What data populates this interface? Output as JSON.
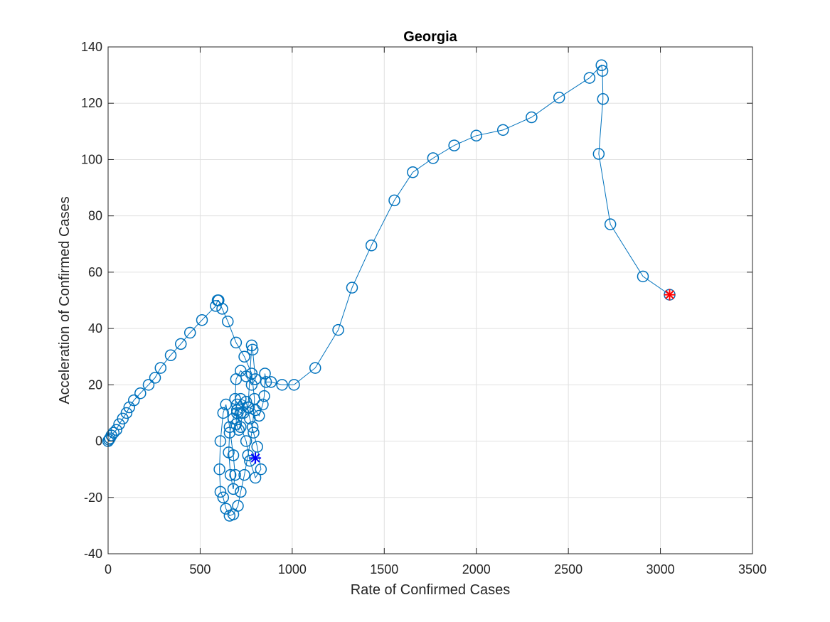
{
  "chart_data": {
    "type": "line",
    "title": "Georgia",
    "xlabel": "Rate of Confirmed Cases",
    "ylabel": "Acceleration of Confirmed Cases",
    "xlim": [
      0,
      3500
    ],
    "ylim": [
      -40,
      140
    ],
    "xticks": [
      0,
      500,
      1000,
      1500,
      2000,
      2500,
      3000,
      3500
    ],
    "yticks": [
      -40,
      -20,
      0,
      20,
      40,
      60,
      80,
      100,
      120,
      140
    ],
    "xtick_labels": [
      "0",
      "500",
      "1000",
      "1500",
      "2000",
      "2500",
      "3000",
      "3500"
    ],
    "ytick_labels": [
      "-40",
      "-20",
      "0",
      "20",
      "40",
      "60",
      "80",
      "100",
      "120",
      "140"
    ],
    "grid": true,
    "colors": {
      "series": "#0072BD",
      "start_marker": "#0000FF",
      "end_marker": "#FF0000",
      "grid": "#e0e0e0",
      "axis": "#262626"
    },
    "series": [
      {
        "marker": "circle",
        "points": [
          [
            0,
            0
          ],
          [
            5,
            0.5
          ],
          [
            10,
            1
          ],
          [
            18,
            2
          ],
          [
            30,
            3
          ],
          [
            45,
            4
          ],
          [
            60,
            6
          ],
          [
            80,
            8
          ],
          [
            100,
            10
          ],
          [
            115,
            12
          ],
          [
            140,
            14.5
          ],
          [
            175,
            17
          ],
          [
            220,
            20
          ],
          [
            255,
            22.5
          ],
          [
            285,
            26
          ],
          [
            340,
            30.5
          ],
          [
            395,
            34.5
          ],
          [
            445,
            38.5
          ],
          [
            510,
            43
          ],
          [
            585,
            48
          ],
          [
            595,
            50
          ],
          [
            600,
            50
          ],
          [
            620,
            47
          ],
          [
            650,
            42.5
          ],
          [
            695,
            35
          ],
          [
            740,
            30
          ],
          [
            780,
            24
          ],
          [
            795,
            15
          ],
          [
            785,
            5
          ],
          [
            760,
            -5
          ],
          [
            740,
            -12
          ],
          [
            720,
            -18
          ],
          [
            705,
            -23
          ],
          [
            680,
            -26
          ],
          [
            660,
            -26.5
          ],
          [
            640,
            -24
          ],
          [
            625,
            -20
          ],
          [
            610,
            -18
          ],
          [
            605,
            -10
          ],
          [
            610,
            0
          ],
          [
            625,
            10
          ],
          [
            640,
            13
          ],
          [
            660,
            5
          ],
          [
            680,
            -5
          ],
          [
            690,
            -12
          ],
          [
            680,
            -17
          ],
          [
            665,
            -12
          ],
          [
            655,
            -4
          ],
          [
            660,
            3
          ],
          [
            680,
            8
          ],
          [
            700,
            13
          ],
          [
            720,
            15
          ],
          [
            750,
            14
          ],
          [
            770,
            8
          ],
          [
            790,
            3
          ],
          [
            810,
            -2
          ],
          [
            830,
            -10
          ],
          [
            800,
            -13
          ],
          [
            770,
            -7
          ],
          [
            750,
            0
          ],
          [
            720,
            5
          ],
          [
            700,
            10
          ],
          [
            690,
            15
          ],
          [
            695,
            22
          ],
          [
            720,
            25
          ],
          [
            750,
            23
          ],
          [
            780,
            20
          ],
          [
            800,
            22
          ],
          [
            785,
            32.5
          ],
          [
            780,
            34
          ],
          [
            760,
            12
          ],
          [
            720,
            10
          ],
          [
            700,
            11
          ],
          [
            695,
            6
          ],
          [
            710,
            4
          ],
          [
            735,
            10
          ],
          [
            765,
            12
          ],
          [
            800,
            11
          ],
          [
            820,
            9
          ],
          [
            840,
            13
          ],
          [
            848,
            16
          ],
          [
            852,
            24
          ],
          [
            858,
            21
          ],
          [
            885,
            21
          ],
          [
            945,
            20
          ],
          [
            1010,
            20
          ],
          [
            1125,
            26
          ],
          [
            1250,
            39.5
          ],
          [
            1325,
            54.5
          ],
          [
            1430,
            69.5
          ],
          [
            1555,
            85.5
          ],
          [
            1655,
            95.5
          ],
          [
            1765,
            100.5
          ],
          [
            1880,
            105
          ],
          [
            2000,
            108.5
          ],
          [
            2145,
            110.5
          ],
          [
            2300,
            115
          ],
          [
            2450,
            122
          ],
          [
            2615,
            129
          ],
          [
            2680,
            133.5
          ],
          [
            2685,
            131.5
          ],
          [
            2688,
            121.5
          ],
          [
            2665,
            102
          ],
          [
            2728,
            77
          ],
          [
            2905,
            58.5
          ],
          [
            3050,
            52
          ]
        ]
      }
    ],
    "start_point": [
      800,
      -6
    ],
    "end_point": [
      3050,
      52
    ]
  }
}
